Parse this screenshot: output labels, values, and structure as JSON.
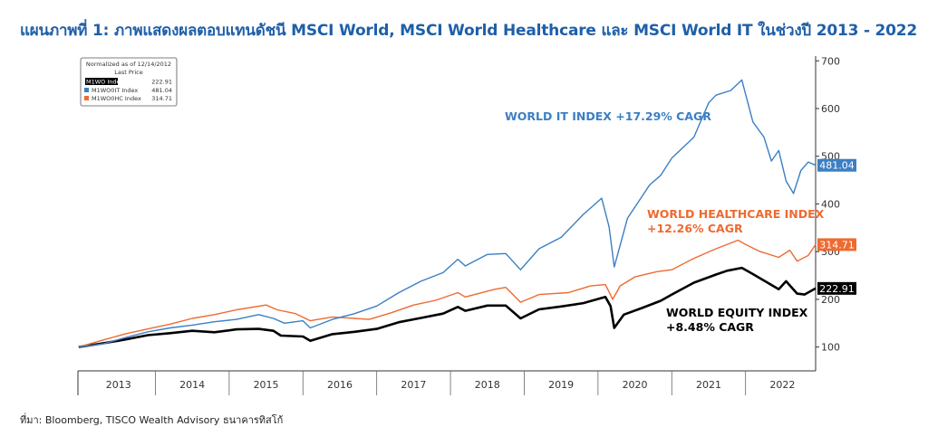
{
  "title": "แผนภาพที่ 1: ภาพแสดงผลตอบแทนดัชนี MSCI World, MSCI World Healthcare และ MSCI World IT ในช่วงปี 2013 - 2022",
  "source": "ที่มา: Bloomberg, TISCO Wealth Advisory ธนาคารทิสโก้",
  "legend": {
    "header1": "Normalized as of 12/14/2012",
    "header2": "Last Price",
    "entries": [
      {
        "name": "M1WO Index",
        "value": "222.91",
        "color": "#000000"
      },
      {
        "name": "M1WO0IT Index",
        "value": "481.04",
        "color": "#3b7fc4"
      },
      {
        "name": "M1WO0HC Index",
        "value": "314.71",
        "color": "#ee6a30"
      }
    ]
  },
  "annotations": {
    "it": "WORLD IT INDEX +17.29% CAGR",
    "hc_line1": "WORLD HEALTHCARE INDEX",
    "hc_line2": "+12.26% CAGR",
    "eq_line1": "WORLD EQUITY INDEX",
    "eq_line2": "+8.48% CAGR"
  },
  "chart_data": {
    "type": "line",
    "title": "แผนภาพที่ 1: ภาพแสดงผลตอบแทนดัชนี MSCI World, MSCI World Healthcare และ MSCI World IT ในช่วงปี 2013 - 2022",
    "xlabel": "",
    "ylabel": "",
    "xlim": [
      2012.95,
      2022.95
    ],
    "ylim": [
      50,
      710
    ],
    "x_ticks": [
      "2013",
      "2014",
      "2015",
      "2016",
      "2017",
      "2018",
      "2019",
      "2020",
      "2021",
      "2022"
    ],
    "y_ticks": [
      100,
      200,
      300,
      400,
      500,
      600,
      700
    ],
    "series": [
      {
        "name": "M1WO Index",
        "color": "#000000",
        "last_value": "222.91",
        "x": [
          2012.96,
          2013.3,
          2013.6,
          2013.9,
          2014.2,
          2014.5,
          2014.8,
          2015.1,
          2015.4,
          2015.6,
          2015.7,
          2016.0,
          2016.1,
          2016.4,
          2016.7,
          2017.0,
          2017.3,
          2017.6,
          2017.9,
          2018.1,
          2018.2,
          2018.5,
          2018.75,
          2018.95,
          2019.2,
          2019.5,
          2019.8,
          2020.1,
          2020.17,
          2020.22,
          2020.35,
          2020.6,
          2020.85,
          2021.0,
          2021.3,
          2021.6,
          2021.75,
          2021.95,
          2022.1,
          2022.45,
          2022.55,
          2022.7,
          2022.8,
          2022.95
        ],
        "y": [
          100,
          108,
          116,
          125,
          129,
          134,
          131,
          137,
          138,
          134,
          124,
          122,
          113,
          127,
          132,
          138,
          152,
          161,
          170,
          184,
          176,
          187,
          187,
          160,
          179,
          185,
          192,
          205,
          186,
          140,
          168,
          182,
          197,
          210,
          235,
          252,
          260,
          266,
          253,
          221,
          238,
          212,
          210,
          223
        ]
      },
      {
        "name": "M1WO0HC Index",
        "color": "#ee6a30",
        "last_value": "314.71",
        "x": [
          2012.96,
          2013.3,
          2013.6,
          2013.9,
          2014.2,
          2014.5,
          2014.8,
          2015.1,
          2015.5,
          2015.65,
          2015.9,
          2016.1,
          2016.4,
          2016.7,
          2016.9,
          2017.2,
          2017.5,
          2017.8,
          2018.1,
          2018.2,
          2018.6,
          2018.75,
          2018.95,
          2019.2,
          2019.6,
          2019.9,
          2020.1,
          2020.2,
          2020.3,
          2020.5,
          2020.8,
          2021.0,
          2021.3,
          2021.6,
          2021.9,
          2022.0,
          2022.2,
          2022.45,
          2022.6,
          2022.7,
          2022.85,
          2022.95
        ],
        "y": [
          100,
          115,
          128,
          138,
          148,
          160,
          168,
          178,
          188,
          178,
          170,
          155,
          163,
          160,
          158,
          172,
          188,
          198,
          214,
          205,
          221,
          225,
          194,
          210,
          214,
          228,
          231,
          200,
          228,
          247,
          258,
          262,
          286,
          306,
          324,
          315,
          300,
          288,
          303,
          280,
          292,
          315
        ]
      },
      {
        "name": "M1WO0IT Index",
        "color": "#3b7fc4",
        "last_value": "481.04",
        "x": [
          2012.96,
          2013.3,
          2013.6,
          2013.9,
          2014.2,
          2014.5,
          2014.8,
          2015.1,
          2015.4,
          2015.6,
          2015.75,
          2016.0,
          2016.1,
          2016.4,
          2016.7,
          2017.0,
          2017.3,
          2017.6,
          2017.9,
          2018.1,
          2018.2,
          2018.5,
          2018.75,
          2018.95,
          2019.2,
          2019.5,
          2019.8,
          2020.05,
          2020.15,
          2020.22,
          2020.4,
          2020.7,
          2020.85,
          2021.0,
          2021.3,
          2021.5,
          2021.6,
          2021.8,
          2021.95,
          2022.1,
          2022.25,
          2022.35,
          2022.45,
          2022.55,
          2022.65,
          2022.75,
          2022.85,
          2022.95
        ],
        "y": [
          100,
          107,
          120,
          132,
          140,
          146,
          153,
          158,
          168,
          160,
          150,
          155,
          140,
          158,
          170,
          186,
          214,
          238,
          256,
          284,
          270,
          294,
          296,
          262,
          306,
          330,
          378,
          412,
          352,
          268,
          370,
          440,
          460,
          496,
          540,
          612,
          628,
          638,
          660,
          572,
          540,
          490,
          512,
          448,
          422,
          470,
          488,
          481
        ]
      }
    ]
  }
}
